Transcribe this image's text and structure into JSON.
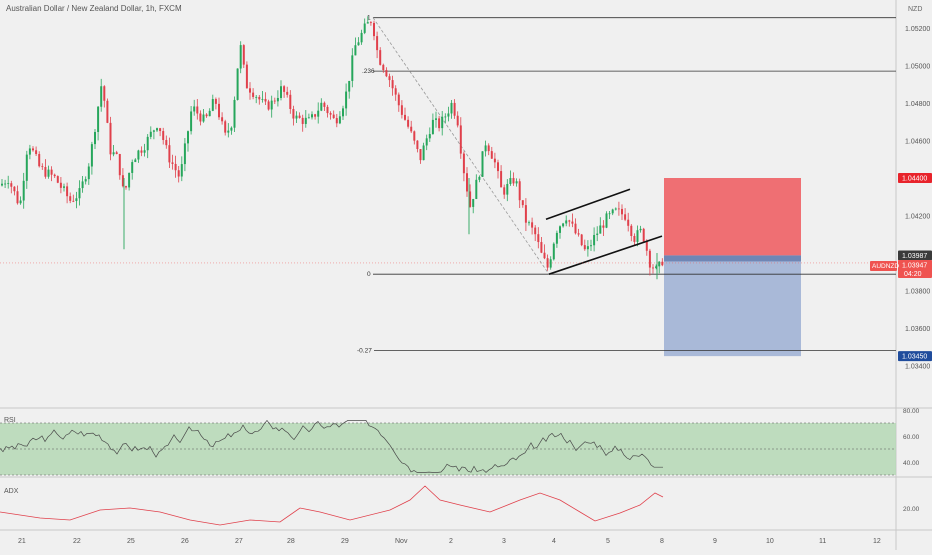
{
  "header": {
    "title": "Australian Dollar / New Zealand Dollar, 1h, FXCM",
    "currency": "NZD"
  },
  "colors": {
    "up": "#26a65b",
    "down": "#e0404b",
    "stop_zone": "#ef6f73",
    "target_zone": "#a9b9d8",
    "entry_band": "#6f86b5",
    "rsi_band": "#b5d8b5",
    "adx_line": "#e0404b",
    "rsi_line": "#4a4a4a"
  },
  "chart_data": [
    {
      "type": "candlestick",
      "title": "Australian Dollar / New Zealand Dollar, 1h, FXCM",
      "symbol": "AUDNZD",
      "ylim": [
        1.0335,
        1.0529
      ],
      "y_ticks": [
        "1.05200",
        "1.05000",
        "1.04800",
        "1.04600",
        "1.04200",
        "1.03800",
        "1.03600",
        "1.03400"
      ],
      "x_ticks": [
        "21",
        "22",
        "25",
        "26",
        "27",
        "28",
        "29",
        "Nov",
        "2",
        "3",
        "4",
        "5",
        "8",
        "9",
        "10",
        "11",
        "12"
      ],
      "price_labels": [
        {
          "value": 1.044,
          "text": "1.04400",
          "kind": "stop"
        },
        {
          "value": 1.03987,
          "text": "1.03987",
          "kind": "last"
        },
        {
          "value": 1.03947,
          "text": "1.03947",
          "kind": "current"
        },
        {
          "value": 1.0345,
          "text": "1.03450",
          "kind": "target"
        }
      ],
      "symbol_tag": "AUDNZD",
      "countdown": "04:20",
      "fib_levels": [
        {
          "label": "1",
          "value": 1.05255
        },
        {
          "label": ".236",
          "value": 1.0497
        },
        {
          "label": "0",
          "value": 1.03887
        },
        {
          "label": "-0.27",
          "value": 1.0348
        }
      ],
      "position": {
        "stop": 1.044,
        "entry": 1.03987,
        "target": 1.0345
      },
      "channel": {
        "upper": [
          [
            1.0418,
            1.0434
          ]
        ],
        "lower": [
          [
            1.03887,
            1.0409
          ]
        ]
      },
      "legend": "none",
      "grid": false
    },
    {
      "type": "line",
      "name": "RSI",
      "title": "RSI",
      "ylim": [
        30,
        80
      ],
      "y_ticks": [
        "80.00",
        "60.00",
        "40.00"
      ],
      "band": [
        30,
        70
      ]
    },
    {
      "type": "line",
      "name": "ADX",
      "title": "ADX",
      "y_ticks": [
        "20.00"
      ]
    }
  ]
}
